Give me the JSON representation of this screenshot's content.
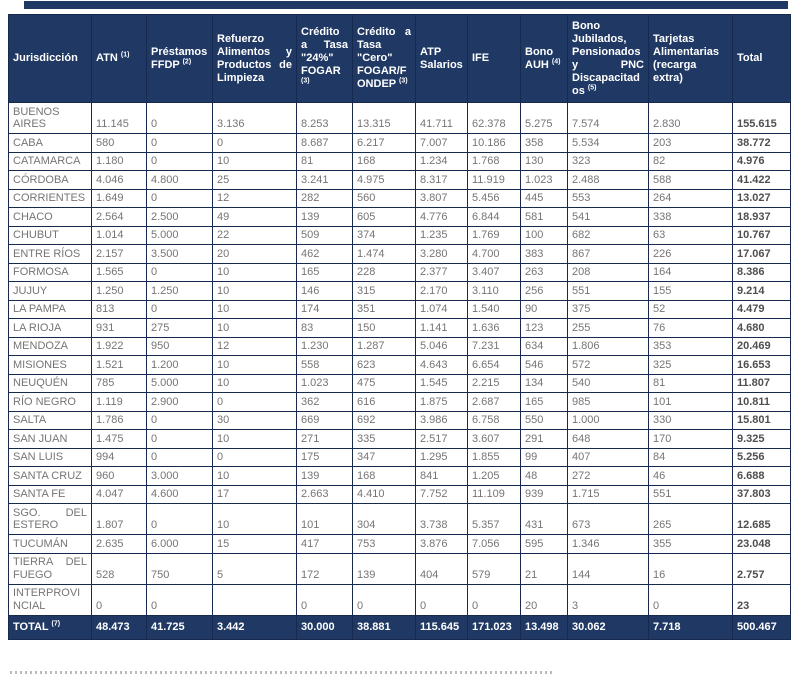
{
  "colors": {
    "header_background": "#1f3864",
    "border": "#17294e",
    "body_text": "#757575",
    "total_row_text": "#ffffff"
  },
  "table": {
    "columns": [
      {
        "label": "Jurisdicción",
        "sup": ""
      },
      {
        "label": "ATN",
        "sup": "(1)"
      },
      {
        "label": "Préstamos FFDP",
        "sup": "(2)"
      },
      {
        "label": "Refuerzo Alimentos y Productos de Limpieza",
        "sup": ""
      },
      {
        "label": "Crédito a Tasa \"24%\" FOGAR",
        "sup": "(3)"
      },
      {
        "label": "Crédito a Tasa \"Cero\" FOGAR/FONDEP",
        "sup": "(3)"
      },
      {
        "label": "ATP Salarios",
        "sup": ""
      },
      {
        "label": "IFE",
        "sup": ""
      },
      {
        "label": "Bono AUH",
        "sup": "(4)"
      },
      {
        "label": "Bono Jubilados, Pensionados y PNC Discapacitados",
        "sup": "(5)"
      },
      {
        "label": "Tarjetas Alimentarias (recarga extra)",
        "sup": ""
      },
      {
        "label": "Total",
        "sup": ""
      }
    ],
    "rows": [
      {
        "name": "BUENOS AIRES",
        "values": [
          "11.145",
          "0",
          "3.136",
          "8.253",
          "13.315",
          "41.711",
          "62.378",
          "5.275",
          "7.574",
          "2.830",
          "155.615"
        ]
      },
      {
        "name": "CABA",
        "values": [
          "580",
          "0",
          "0",
          "8.687",
          "6.217",
          "7.007",
          "10.186",
          "358",
          "5.534",
          "203",
          "38.772"
        ]
      },
      {
        "name": "CATAMARCA",
        "values": [
          "1.180",
          "0",
          "10",
          "81",
          "168",
          "1.234",
          "1.768",
          "130",
          "323",
          "82",
          "4.976"
        ]
      },
      {
        "name": "CÓRDOBA",
        "values": [
          "4.046",
          "4.800",
          "25",
          "3.241",
          "4.975",
          "8.317",
          "11.919",
          "1.023",
          "2.488",
          "588",
          "41.422"
        ]
      },
      {
        "name": "CORRIENTES",
        "values": [
          "1.649",
          "0",
          "12",
          "282",
          "560",
          "3.807",
          "5.456",
          "445",
          "553",
          "264",
          "13.027"
        ]
      },
      {
        "name": "CHACO",
        "values": [
          "2.564",
          "2.500",
          "49",
          "139",
          "605",
          "4.776",
          "6.844",
          "581",
          "541",
          "338",
          "18.937"
        ]
      },
      {
        "name": "CHUBUT",
        "values": [
          "1.014",
          "5.000",
          "22",
          "509",
          "374",
          "1.235",
          "1.769",
          "100",
          "682",
          "63",
          "10.767"
        ]
      },
      {
        "name": "ENTRE RÍOS",
        "values": [
          "2.157",
          "3.500",
          "20",
          "462",
          "1.474",
          "3.280",
          "4.700",
          "383",
          "867",
          "226",
          "17.067"
        ]
      },
      {
        "name": "FORMOSA",
        "values": [
          "1.565",
          "0",
          "10",
          "165",
          "228",
          "2.377",
          "3.407",
          "263",
          "208",
          "164",
          "8.386"
        ]
      },
      {
        "name": "JUJUY",
        "values": [
          "1.250",
          "1.250",
          "10",
          "146",
          "315",
          "2.170",
          "3.110",
          "256",
          "551",
          "155",
          "9.214"
        ]
      },
      {
        "name": "LA PAMPA",
        "values": [
          "813",
          "0",
          "10",
          "174",
          "351",
          "1.074",
          "1.540",
          "90",
          "375",
          "52",
          "4.479"
        ]
      },
      {
        "name": "LA RIOJA",
        "values": [
          "931",
          "275",
          "10",
          "83",
          "150",
          "1.141",
          "1.636",
          "123",
          "255",
          "76",
          "4.680"
        ]
      },
      {
        "name": "MENDOZA",
        "values": [
          "1.922",
          "950",
          "12",
          "1.230",
          "1.287",
          "5.046",
          "7.231",
          "634",
          "1.806",
          "353",
          "20.469"
        ]
      },
      {
        "name": "MISIONES",
        "values": [
          "1.521",
          "1.200",
          "10",
          "558",
          "623",
          "4.643",
          "6.654",
          "546",
          "572",
          "325",
          "16.653"
        ]
      },
      {
        "name": "NEUQUÉN",
        "values": [
          "785",
          "5.000",
          "10",
          "1.023",
          "475",
          "1.545",
          "2.215",
          "134",
          "540",
          "81",
          "11.807"
        ]
      },
      {
        "name": "RÍO NEGRO",
        "values": [
          "1.119",
          "2.900",
          "0",
          "362",
          "616",
          "1.875",
          "2.687",
          "165",
          "985",
          "101",
          "10.811"
        ]
      },
      {
        "name": "SALTA",
        "values": [
          "1.786",
          "0",
          "30",
          "669",
          "692",
          "3.986",
          "6.758",
          "550",
          "1.000",
          "330",
          "15.801"
        ]
      },
      {
        "name": "SAN JUAN",
        "values": [
          "1.475",
          "0",
          "10",
          "271",
          "335",
          "2.517",
          "3.607",
          "291",
          "648",
          "170",
          "9.325"
        ]
      },
      {
        "name": "SAN LUIS",
        "values": [
          "994",
          "0",
          "0",
          "175",
          "347",
          "1.295",
          "1.855",
          "99",
          "407",
          "84",
          "5.256"
        ]
      },
      {
        "name": "SANTA CRUZ",
        "values": [
          "960",
          "3.000",
          "10",
          "139",
          "168",
          "841",
          "1.205",
          "48",
          "272",
          "46",
          "6.688"
        ]
      },
      {
        "name": "SANTA FE",
        "values": [
          "4.047",
          "4.600",
          "17",
          "2.663",
          "4.410",
          "7.752",
          "11.109",
          "939",
          "1.715",
          "551",
          "37.803"
        ]
      },
      {
        "name": "SGO. DEL ESTERO",
        "values": [
          "1.807",
          "0",
          "10",
          "101",
          "304",
          "3.738",
          "5.357",
          "431",
          "673",
          "265",
          "12.685"
        ]
      },
      {
        "name": "TUCUMÁN",
        "values": [
          "2.635",
          "6.000",
          "15",
          "417",
          "753",
          "3.876",
          "7.056",
          "595",
          "1.346",
          "355",
          "23.048"
        ]
      },
      {
        "name": "TIERRA DEL FUEGO",
        "values": [
          "528",
          "750",
          "5",
          "172",
          "139",
          "404",
          "579",
          "21",
          "144",
          "16",
          "2.757"
        ]
      },
      {
        "name": "INTERPROVINCIAL",
        "values": [
          "0",
          "0",
          "",
          "0",
          "0",
          "0",
          "0",
          "20",
          "3",
          "0",
          "23"
        ]
      }
    ],
    "total": {
      "label": "TOTAL",
      "sup": "(7)",
      "values": [
        "48.473",
        "41.725",
        "3.442",
        "30.000",
        "38.881",
        "115.645",
        "171.023",
        "13.498",
        "30.062",
        "7.718",
        "500.467"
      ]
    }
  }
}
